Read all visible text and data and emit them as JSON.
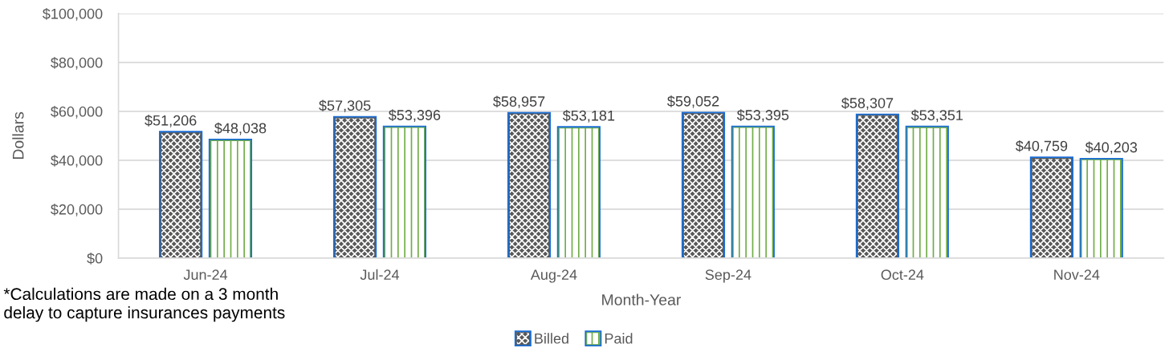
{
  "chart_data": {
    "type": "bar",
    "categories": [
      "Jun-24",
      "Jul-24",
      "Aug-24",
      "Sep-24",
      "Oct-24",
      "Nov-24"
    ],
    "series": [
      {
        "name": "Billed",
        "color": "#595959",
        "values": [
          51206,
          57305,
          58957,
          59052,
          58307,
          40759
        ],
        "value_labels": [
          "$51,206",
          "$57,305",
          "$58,957",
          "$59,052",
          "$58,307",
          "$40,759"
        ]
      },
      {
        "name": "Paid",
        "color": "#70ad47",
        "values": [
          48038,
          53396,
          53181,
          53395,
          53351,
          40203
        ],
        "value_labels": [
          "$48,038",
          "$53,396",
          "$53,181",
          "$53,395",
          "$53,351",
          "$40,203"
        ]
      }
    ],
    "xlabel": "Month-Year",
    "ylabel": "Dollars",
    "ylim": [
      0,
      100000
    ],
    "yticks": [
      {
        "value": 0,
        "label": "$0"
      },
      {
        "value": 20000,
        "label": "$20,000"
      },
      {
        "value": 40000,
        "label": "$40,000"
      },
      {
        "value": 60000,
        "label": "$60,000"
      },
      {
        "value": 80000,
        "label": "$80,000"
      },
      {
        "value": 100000,
        "label": "$100,000"
      }
    ],
    "grid": "y",
    "legend": "bottom",
    "annotations": [
      "*Calculations are made on a 3 month\ndelay to capture insurances payments"
    ]
  }
}
